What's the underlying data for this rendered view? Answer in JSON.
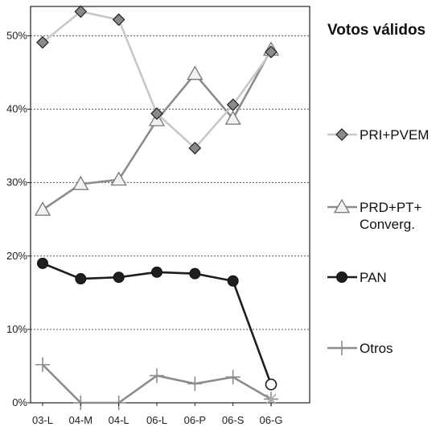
{
  "chart_data": {
    "type": "line",
    "title": "Votos válidos",
    "categories": [
      "03-L",
      "04-M",
      "04-L",
      "06-L",
      "06-P",
      "06-S",
      "06-G"
    ],
    "y_ticks": [
      "0%",
      "10%",
      "20%",
      "30%",
      "40%",
      "50%"
    ],
    "ylim": [
      0,
      54
    ],
    "grid": true,
    "legend_position": "right",
    "series": [
      {
        "name": "PRI+PVEM",
        "values": [
          49.1,
          53.3,
          52.2,
          39.4,
          34.7,
          40.6,
          47.8
        ],
        "color": "#c8c8c8",
        "marker": "diamond"
      },
      {
        "name": "PRD+PT+ Converg.",
        "legend_lines": [
          "PRD+PT+",
          "Converg."
        ],
        "values": [
          26.3,
          29.8,
          30.4,
          38.5,
          44.8,
          38.7,
          48.1
        ],
        "color": "#8c8c8c",
        "marker": "triangle"
      },
      {
        "name": "PAN",
        "values": [
          19.0,
          16.9,
          17.1,
          17.8,
          17.6,
          16.6,
          2.5
        ],
        "color": "#1e1e1e",
        "marker": "circle"
      },
      {
        "name": "Otros",
        "values": [
          5.2,
          0.0,
          0.0,
          3.7,
          2.6,
          3.5,
          0.5
        ],
        "color": "#8c8c8c",
        "marker": "plus"
      }
    ]
  }
}
